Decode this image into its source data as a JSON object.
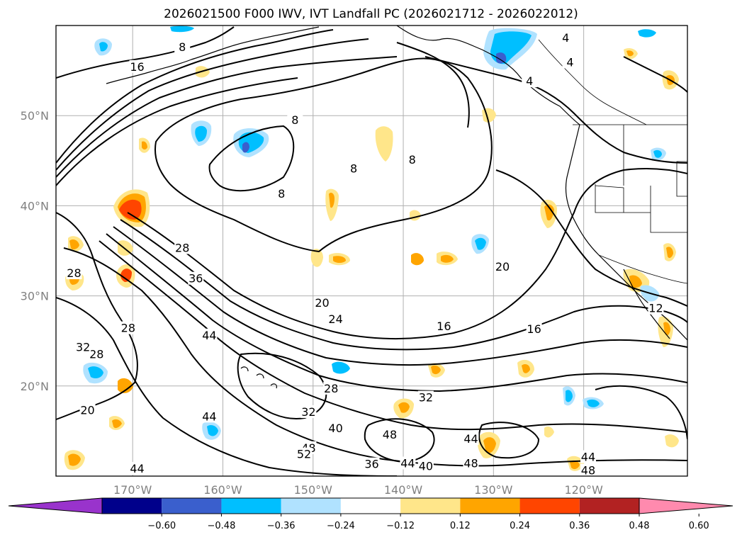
{
  "title": "2026021500 F000 IWV, IVT Landfall PC (2026021712 - 2026022012)",
  "map": {
    "lon_range": [
      -178.5,
      -108.5
    ],
    "lat_range": [
      10,
      60
    ],
    "gridlines": true,
    "lat_ticks": [
      {
        "value": 20,
        "label": "20°N"
      },
      {
        "value": 30,
        "label": "30°N"
      },
      {
        "value": 40,
        "label": "40°N"
      },
      {
        "value": 50,
        "label": "50°N"
      }
    ],
    "lon_ticks": [
      {
        "value": -170,
        "label": "170°W"
      },
      {
        "value": -160,
        "label": "160°W"
      },
      {
        "value": -150,
        "label": "150°W"
      },
      {
        "value": -140,
        "label": "140°W"
      },
      {
        "value": -130,
        "label": "130°W"
      },
      {
        "value": -120,
        "label": "120°W"
      }
    ]
  },
  "contour_labels": [
    {
      "text": "16",
      "lon": -169.5,
      "lat": 55.3
    },
    {
      "text": "8",
      "lon": -164.5,
      "lat": 57.5
    },
    {
      "text": "8",
      "lon": -152,
      "lat": 49.4
    },
    {
      "text": "8",
      "lon": -153.5,
      "lat": 41.2
    },
    {
      "text": "8",
      "lon": -139,
      "lat": 45
    },
    {
      "text": "8",
      "lon": -145.5,
      "lat": 44
    },
    {
      "text": "4",
      "lon": -122,
      "lat": 58.5
    },
    {
      "text": "4",
      "lon": -121.5,
      "lat": 55.8
    },
    {
      "text": "4",
      "lon": -126,
      "lat": 53.7
    },
    {
      "text": "28",
      "lon": -164.5,
      "lat": 35.2
    },
    {
      "text": "36",
      "lon": -163,
      "lat": 31.8
    },
    {
      "text": "20",
      "lon": -149,
      "lat": 29.1
    },
    {
      "text": "24",
      "lon": -147.5,
      "lat": 27.3
    },
    {
      "text": "20",
      "lon": -129,
      "lat": 33.1
    },
    {
      "text": "16",
      "lon": -135.5,
      "lat": 26.5
    },
    {
      "text": "16",
      "lon": -125.5,
      "lat": 26.2
    },
    {
      "text": "12",
      "lon": -112,
      "lat": 28.5
    },
    {
      "text": "28",
      "lon": -170.5,
      "lat": 26.3
    },
    {
      "text": "28",
      "lon": -174,
      "lat": 23.4
    },
    {
      "text": "28",
      "lon": -176.5,
      "lat": 32.4
    },
    {
      "text": "44",
      "lon": -161.5,
      "lat": 25.5
    },
    {
      "text": "28",
      "lon": -148,
      "lat": 19.6
    },
    {
      "text": "32",
      "lon": -137.5,
      "lat": 18.6
    },
    {
      "text": "32",
      "lon": -150.5,
      "lat": 17
    },
    {
      "text": "40",
      "lon": -147.5,
      "lat": 15.2
    },
    {
      "text": "48",
      "lon": -141.5,
      "lat": 14.5
    },
    {
      "text": "44",
      "lon": -132.5,
      "lat": 14
    },
    {
      "text": "48",
      "lon": -150.5,
      "lat": 13
    },
    {
      "text": "52",
      "lon": -151,
      "lat": 12.3
    },
    {
      "text": "36",
      "lon": -143.5,
      "lat": 11.2
    },
    {
      "text": "44",
      "lon": -139.5,
      "lat": 11.3
    },
    {
      "text": "40",
      "lon": -137.5,
      "lat": 11
    },
    {
      "text": "48",
      "lon": -132.5,
      "lat": 11.3
    },
    {
      "text": "44",
      "lon": -119.5,
      "lat": 12
    },
    {
      "text": "48",
      "lon": -119.5,
      "lat": 10.5
    },
    {
      "text": "44",
      "lon": -169.5,
      "lat": 10.7
    },
    {
      "text": "20",
      "lon": -175,
      "lat": 17.2
    },
    {
      "text": "44",
      "lon": -161.5,
      "lat": 16.5
    },
    {
      "text": "32",
      "lon": -175.5,
      "lat": 24.2
    }
  ],
  "colorbar": {
    "labels": [
      "−0.60",
      "−0.48",
      "−0.36",
      "−0.24",
      "−0.12",
      "0.12",
      "0.24",
      "0.36",
      "0.48",
      "0.60"
    ],
    "colors": [
      "#9933cc",
      "#00008b",
      "#3a5fcd",
      "#00bfff",
      "#b0e2ff",
      "#ffffff",
      "#ffe68a",
      "#ffa500",
      "#ff4500",
      "#b22222",
      "#ff8aae"
    ],
    "extend": "both"
  }
}
